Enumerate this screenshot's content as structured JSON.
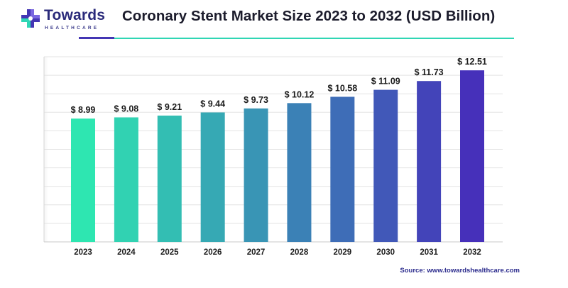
{
  "logo": {
    "name": "Towards",
    "tagline": "HEALTHCARE"
  },
  "source": "Source: www.towardshealthcare.com",
  "colors": {
    "brand_dark": "#4436b4",
    "brand_teal": "#2fd6b4",
    "grid": "#e3e3e3",
    "bar_start": "#2ee6b1",
    "bar_end": "#4630ba"
  },
  "chart_data": {
    "type": "bar",
    "title": "Coronary Stent Market Size 2023 to 2032 (USD Billion)",
    "categories": [
      "2023",
      "2024",
      "2025",
      "2026",
      "2027",
      "2028",
      "2029",
      "2030",
      "2031",
      "2032"
    ],
    "values": [
      8.99,
      9.08,
      9.21,
      9.44,
      9.73,
      10.12,
      10.58,
      11.09,
      11.73,
      12.51
    ],
    "value_labels": [
      "$ 8.99",
      "$ 9.08",
      "$ 9.21",
      "$ 9.44",
      "$ 9.73",
      "$ 10.12",
      "$ 10.58",
      "$ 11.09",
      "$ 11.73",
      "$ 12.51"
    ],
    "xlabel": "",
    "ylabel": "",
    "ylim": [
      0,
      13.5
    ],
    "grid": true,
    "legend": "none"
  }
}
